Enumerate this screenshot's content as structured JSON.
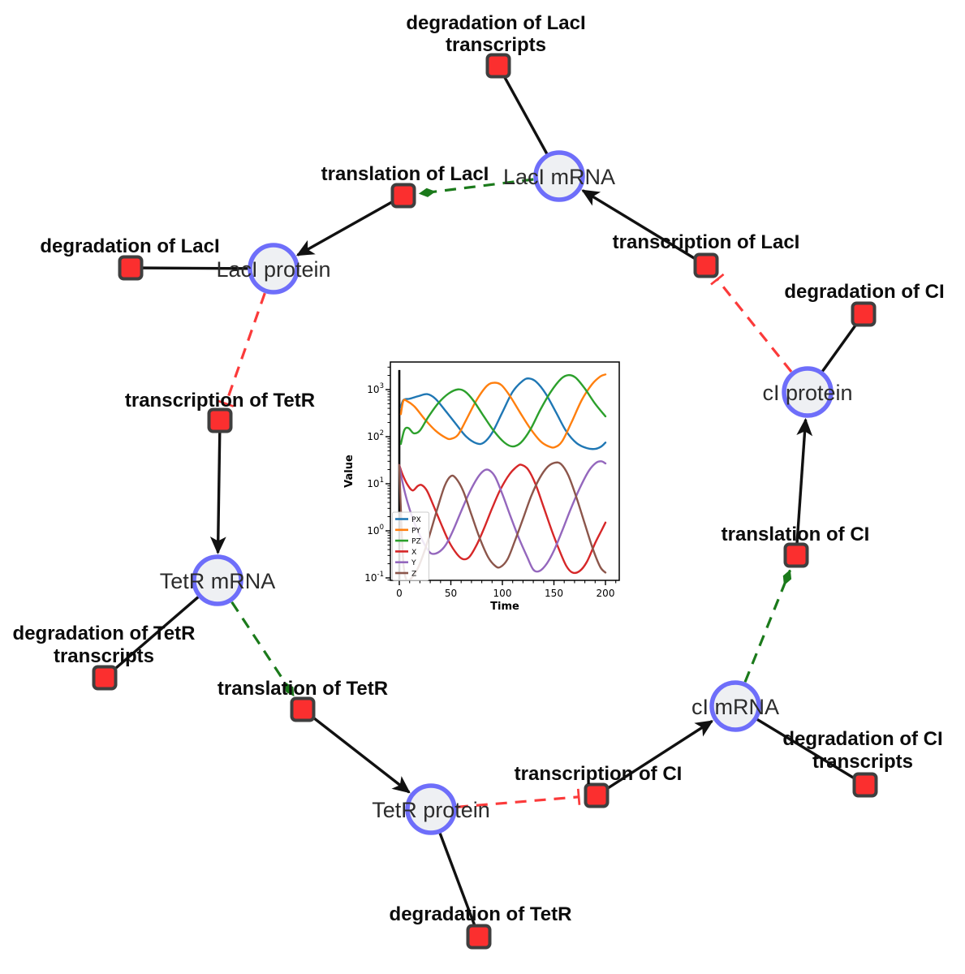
{
  "diagram": {
    "colors": {
      "node_fill": "#eef0f3",
      "node_border": "#6e6efa",
      "reaction_fill": "#fb2f2f",
      "reaction_border": "#3f3f3f",
      "edge_black": "#111111",
      "edge_activation": "#1b7a1b",
      "edge_inhibition": "#fb3a3a"
    },
    "species": [
      {
        "label": "LacI mRNA"
      },
      {
        "label": "LacI protein"
      },
      {
        "label": "TetR mRNA"
      },
      {
        "label": "TetR protein"
      },
      {
        "label": "cI mRNA"
      },
      {
        "label": "cI protein"
      }
    ],
    "reactions": [
      {
        "lines": [
          "degradation of LacI",
          "transcripts"
        ]
      },
      {
        "lines": [
          "translation of LacI"
        ]
      },
      {
        "lines": [
          "degradation of LacI"
        ]
      },
      {
        "lines": [
          "transcription of LacI"
        ]
      },
      {
        "lines": [
          "degradation of CI"
        ]
      },
      {
        "lines": [
          "transcription of TetR"
        ]
      },
      {
        "lines": [
          "degradation of TetR",
          "transcripts"
        ]
      },
      {
        "lines": [
          "translation of TetR"
        ]
      },
      {
        "lines": [
          "degradation of TetR"
        ]
      },
      {
        "lines": [
          "transcription of CI"
        ]
      },
      {
        "lines": [
          "degradation of CI",
          "transcripts"
        ]
      },
      {
        "lines": [
          "translation of CI"
        ]
      }
    ]
  },
  "chart_data": {
    "type": "line",
    "title": "",
    "xlabel": "Time",
    "ylabel": "Value",
    "xlim": [
      -10,
      213
    ],
    "xticks": [
      0,
      50,
      100,
      150,
      200
    ],
    "x_minor_step": 10,
    "yscale": "log",
    "ylim": [
      0.085,
      3855
    ],
    "ytick_exponents": [
      -1,
      0,
      1,
      2,
      3
    ],
    "grid": false,
    "legend_position": "lower left",
    "initial_spike": {
      "x": 0,
      "from": 0.085,
      "to": 2600,
      "color": "#000000"
    },
    "series": [
      {
        "name": "PX",
        "color": "#1f77b4",
        "points": [
          [
            1.5,
            420
          ],
          [
            4,
            600
          ],
          [
            10,
            640
          ],
          [
            18,
            720
          ],
          [
            27,
            800
          ],
          [
            35,
            640
          ],
          [
            45,
            350
          ],
          [
            55,
            185
          ],
          [
            65,
            100
          ],
          [
            75,
            72
          ],
          [
            82,
            75
          ],
          [
            90,
            120
          ],
          [
            100,
            330
          ],
          [
            110,
            900
          ],
          [
            120,
            1550
          ],
          [
            126,
            1720
          ],
          [
            133,
            1450
          ],
          [
            142,
            820
          ],
          [
            152,
            330
          ],
          [
            162,
            130
          ],
          [
            172,
            73
          ],
          [
            182,
            57
          ],
          [
            190,
            55
          ],
          [
            196,
            62
          ],
          [
            200,
            75
          ]
        ]
      },
      {
        "name": "PY",
        "color": "#ff7f0e",
        "points": [
          [
            1.5,
            300
          ],
          [
            4,
            580
          ],
          [
            8,
            560
          ],
          [
            15,
            430
          ],
          [
            25,
            230
          ],
          [
            35,
            135
          ],
          [
            45,
            95
          ],
          [
            50,
            90
          ],
          [
            57,
            110
          ],
          [
            65,
            230
          ],
          [
            75,
            600
          ],
          [
            85,
            1200
          ],
          [
            92,
            1400
          ],
          [
            99,
            1250
          ],
          [
            107,
            750
          ],
          [
            117,
            330
          ],
          [
            127,
            150
          ],
          [
            137,
            80
          ],
          [
            145,
            62
          ],
          [
            151,
            60
          ],
          [
            158,
            80
          ],
          [
            167,
            200
          ],
          [
            177,
            600
          ],
          [
            187,
            1300
          ],
          [
            195,
            1900
          ],
          [
            200,
            2100
          ]
        ]
      },
      {
        "name": "PZ",
        "color": "#2ca02c",
        "points": [
          [
            1.5,
            70
          ],
          [
            5,
            140
          ],
          [
            9,
            152
          ],
          [
            14,
            118
          ],
          [
            20,
            135
          ],
          [
            28,
            260
          ],
          [
            38,
            520
          ],
          [
            48,
            830
          ],
          [
            57,
            1010
          ],
          [
            64,
            900
          ],
          [
            72,
            580
          ],
          [
            82,
            270
          ],
          [
            92,
            130
          ],
          [
            102,
            75
          ],
          [
            110,
            62
          ],
          [
            118,
            75
          ],
          [
            127,
            140
          ],
          [
            137,
            380
          ],
          [
            147,
            900
          ],
          [
            157,
            1700
          ],
          [
            164,
            2030
          ],
          [
            171,
            1800
          ],
          [
            180,
            1050
          ],
          [
            190,
            500
          ],
          [
            200,
            270
          ]
        ]
      },
      {
        "name": "X",
        "color": "#d62728",
        "points": [
          [
            0,
            25
          ],
          [
            3,
            16
          ],
          [
            8,
            9.5
          ],
          [
            13,
            7.2
          ],
          [
            18,
            9
          ],
          [
            22,
            9.3
          ],
          [
            27,
            7
          ],
          [
            33,
            3.5
          ],
          [
            40,
            1.5
          ],
          [
            48,
            0.6
          ],
          [
            56,
            0.32
          ],
          [
            62,
            0.25
          ],
          [
            68,
            0.28
          ],
          [
            75,
            0.5
          ],
          [
            82,
            1.1
          ],
          [
            90,
            3
          ],
          [
            98,
            7.5
          ],
          [
            107,
            16
          ],
          [
            115,
            24
          ],
          [
            119,
            25
          ],
          [
            125,
            20
          ],
          [
            132,
            10
          ],
          [
            140,
            3.2
          ],
          [
            148,
            1
          ],
          [
            155,
            0.4
          ],
          [
            162,
            0.18
          ],
          [
            168,
            0.13
          ],
          [
            175,
            0.14
          ],
          [
            182,
            0.22
          ],
          [
            190,
            0.55
          ],
          [
            196,
            1
          ],
          [
            200,
            1.5
          ]
        ]
      },
      {
        "name": "Y",
        "color": "#9467bd",
        "points": [
          [
            0,
            25
          ],
          [
            3,
            11
          ],
          [
            8,
            4
          ],
          [
            14,
            1.6
          ],
          [
            20,
            0.8
          ],
          [
            26,
            0.45
          ],
          [
            31,
            0.33
          ],
          [
            38,
            0.35
          ],
          [
            45,
            0.5
          ],
          [
            52,
            1
          ],
          [
            60,
            2.6
          ],
          [
            68,
            6.5
          ],
          [
            76,
            13.5
          ],
          [
            82,
            19
          ],
          [
            87,
            19.5
          ],
          [
            93,
            14
          ],
          [
            100,
            6
          ],
          [
            108,
            2
          ],
          [
            116,
            0.7
          ],
          [
            124,
            0.28
          ],
          [
            130,
            0.15
          ],
          [
            136,
            0.14
          ],
          [
            143,
            0.2
          ],
          [
            150,
            0.38
          ],
          [
            158,
            1
          ],
          [
            166,
            2.8
          ],
          [
            175,
            8
          ],
          [
            184,
            19
          ],
          [
            191,
            28
          ],
          [
            196,
            30
          ],
          [
            200,
            27
          ]
        ]
      },
      {
        "name": "Z",
        "color": "#8c564b",
        "points": [
          [
            0,
            25
          ],
          [
            2,
            1.5
          ],
          [
            4,
            0.2
          ],
          [
            7,
            0.09
          ],
          [
            12,
            0.1
          ],
          [
            18,
            0.16
          ],
          [
            24,
            0.35
          ],
          [
            30,
            0.9
          ],
          [
            37,
            3
          ],
          [
            44,
            9
          ],
          [
            50,
            14.5
          ],
          [
            55,
            13
          ],
          [
            62,
            7
          ],
          [
            70,
            2.2
          ],
          [
            78,
            0.7
          ],
          [
            86,
            0.28
          ],
          [
            93,
            0.18
          ],
          [
            98,
            0.17
          ],
          [
            105,
            0.25
          ],
          [
            112,
            0.6
          ],
          [
            120,
            1.8
          ],
          [
            128,
            5.5
          ],
          [
            136,
            13
          ],
          [
            144,
            23
          ],
          [
            151,
            28
          ],
          [
            157,
            26
          ],
          [
            164,
            15
          ],
          [
            172,
            5
          ],
          [
            180,
            1.4
          ],
          [
            188,
            0.4
          ],
          [
            195,
            0.17
          ],
          [
            200,
            0.13
          ]
        ]
      }
    ]
  }
}
